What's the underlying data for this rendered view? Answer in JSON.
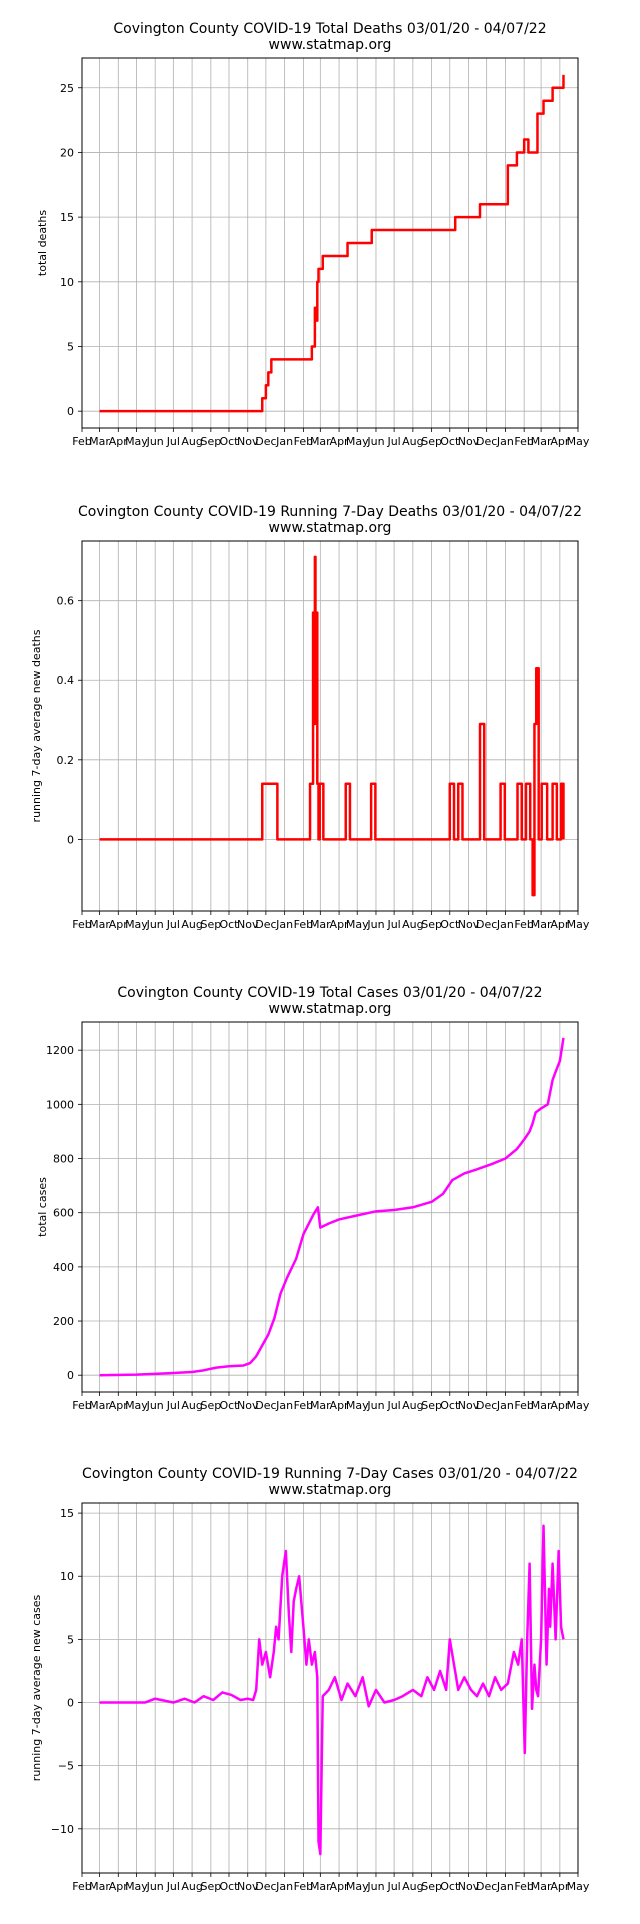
{
  "x_tick_labels": [
    "Feb",
    "Mar",
    "Apr",
    "May",
    "Jun",
    "Jul",
    "Aug",
    "Sep",
    "Oct",
    "Nov",
    "Dec",
    "Jan",
    "Feb",
    "Mar",
    "Apr",
    "May",
    "Jun",
    "Jul",
    "Aug",
    "Sep",
    "Oct",
    "Nov",
    "Dec",
    "Jan",
    "Feb",
    "Mar",
    "Apr",
    "May"
  ],
  "colors": {
    "deaths": "#ff0000",
    "cases": "#ff00ff",
    "grid": "#b0b0b0",
    "axis": "#000000"
  },
  "chart_data": [
    {
      "type": "line",
      "title": "Covington County COVID-19 Total Deaths 03/01/20 - 04/07/22",
      "subtitle": "www.statmap.org",
      "xlabel": "",
      "ylabel": "total deaths",
      "xlim": [
        "2020-02-01",
        "2022-05-01"
      ],
      "ylim": [
        -1.3,
        27.3
      ],
      "yticks": [
        0,
        5,
        10,
        15,
        20,
        25
      ],
      "grid": true,
      "color": "#ff0000",
      "step": true,
      "series": [
        {
          "x": [
            "2020-03-01",
            "2020-11-25",
            "2020-12-01",
            "2020-12-05",
            "2020-12-10",
            "2020-12-20",
            "2021-02-15",
            "2021-02-20",
            "2021-02-22",
            "2021-02-24",
            "2021-02-26",
            "2021-03-05",
            "2021-04-15",
            "2021-05-25",
            "2021-10-01",
            "2021-10-10",
            "2021-11-20",
            "2022-01-05",
            "2022-01-20",
            "2022-02-01",
            "2022-02-08",
            "2022-02-23",
            "2022-03-05",
            "2022-03-20",
            "2022-04-07"
          ],
          "y": [
            0,
            1,
            2,
            3,
            4,
            4,
            5,
            8,
            7,
            10,
            11,
            12,
            13,
            14,
            14,
            15,
            16,
            19,
            20,
            21,
            20,
            23,
            24,
            25,
            26
          ]
        }
      ]
    },
    {
      "type": "line",
      "title": "Covington County COVID-19 Running 7-Day Deaths 03/01/20 - 04/07/22",
      "subtitle": "www.statmap.org",
      "xlabel": "",
      "ylabel": "running 7-day average new deaths",
      "xlim": [
        "2020-02-01",
        "2022-05-01"
      ],
      "ylim": [
        -0.18,
        0.75
      ],
      "yticks": [
        0.0,
        0.2,
        0.4,
        0.6
      ],
      "grid": true,
      "color": "#ff0000",
      "step": true,
      "series": [
        {
          "x": [
            "2020-03-01",
            "2020-11-25",
            "2020-12-02",
            "2020-12-05",
            "2020-12-09",
            "2020-12-12",
            "2020-12-16",
            "2020-12-20",
            "2021-02-12",
            "2021-02-17",
            "2021-02-19",
            "2021-02-20",
            "2021-02-21",
            "2021-02-22",
            "2021-02-23",
            "2021-02-24",
            "2021-02-26",
            "2021-02-28",
            "2021-03-02",
            "2021-03-06",
            "2021-03-09",
            "2021-03-13",
            "2021-04-12",
            "2021-04-19",
            "2021-05-24",
            "2021-05-31",
            "2021-10-01",
            "2021-10-08",
            "2021-10-15",
            "2021-10-22",
            "2021-11-20",
            "2021-11-27",
            "2021-12-24",
            "2021-12-31",
            "2022-01-21",
            "2022-01-28",
            "2022-02-04",
            "2022-02-11",
            "2022-02-15",
            "2022-02-18",
            "2022-02-21",
            "2022-02-25",
            "2022-03-02",
            "2022-03-07",
            "2022-03-11",
            "2022-03-16",
            "2022-03-20",
            "2022-03-27",
            "2022-04-03",
            "2022-04-07"
          ],
          "y": [
            0,
            0.14,
            0.14,
            0.14,
            0.14,
            0.14,
            0.14,
            0,
            0.14,
            0.57,
            0.29,
            0.71,
            0.57,
            0.43,
            0.57,
            0.14,
            0,
            0.14,
            0.14,
            0,
            0,
            0,
            0.14,
            0,
            0.14,
            0,
            0.14,
            0,
            0.14,
            0,
            0.29,
            0,
            0.14,
            0,
            0.14,
            0,
            0.14,
            0,
            -0.14,
            0.29,
            0.43,
            0,
            0.14,
            0.14,
            0,
            0,
            0.14,
            0,
            0.14,
            0
          ]
        }
      ]
    },
    {
      "type": "line",
      "title": "Covington County COVID-19 Total Cases 03/01/20 - 04/07/22",
      "subtitle": "www.statmap.org",
      "xlabel": "",
      "ylabel": "total cases",
      "xlim": [
        "2020-02-01",
        "2022-05-01"
      ],
      "ylim": [
        -62,
        1304
      ],
      "yticks": [
        0,
        200,
        400,
        600,
        800,
        1000,
        1200
      ],
      "grid": true,
      "color": "#ff00ff",
      "step": false,
      "series": [
        {
          "x": [
            "2020-03-01",
            "2020-05-01",
            "2020-06-01",
            "2020-07-01",
            "2020-08-01",
            "2020-08-20",
            "2020-09-10",
            "2020-10-01",
            "2020-10-25",
            "2020-11-05",
            "2020-11-15",
            "2020-11-25",
            "2020-12-05",
            "2020-12-15",
            "2020-12-25",
            "2021-01-05",
            "2021-01-20",
            "2021-02-01",
            "2021-02-10",
            "2021-02-18",
            "2021-02-25",
            "2021-03-01",
            "2021-03-15",
            "2021-04-01",
            "2021-05-01",
            "2021-06-01",
            "2021-07-01",
            "2021-08-01",
            "2021-09-01",
            "2021-09-20",
            "2021-10-05",
            "2021-10-25",
            "2021-11-15",
            "2021-12-10",
            "2022-01-01",
            "2022-01-20",
            "2022-02-01",
            "2022-02-10",
            "2022-02-15",
            "2022-02-20",
            "2022-03-01",
            "2022-03-12",
            "2022-03-20",
            "2022-03-25",
            "2022-04-01",
            "2022-04-07"
          ],
          "y": [
            0,
            2,
            5,
            8,
            12,
            18,
            28,
            33,
            36,
            45,
            70,
            110,
            150,
            210,
            300,
            360,
            430,
            520,
            560,
            595,
            620,
            545,
            560,
            575,
            590,
            605,
            610,
            620,
            640,
            670,
            720,
            745,
            760,
            780,
            800,
            835,
            870,
            900,
            930,
            970,
            985,
            1000,
            1090,
            1120,
            1160,
            1245
          ]
        }
      ]
    },
    {
      "type": "line",
      "title": "Covington County COVID-19 Running 7-Day Cases 03/01/20 - 04/07/22",
      "subtitle": "www.statmap.org",
      "xlabel": "",
      "ylabel": "running 7-day average new cases",
      "xlim": [
        "2020-02-01",
        "2022-05-01"
      ],
      "ylim": [
        -13.5,
        15.8
      ],
      "yticks": [
        -10,
        -5,
        0,
        5,
        10,
        15
      ],
      "grid": true,
      "color": "#ff00ff",
      "step": false,
      "series": [
        {
          "x": [
            "2020-03-01",
            "2020-05-15",
            "2020-06-01",
            "2020-07-01",
            "2020-07-20",
            "2020-08-05",
            "2020-08-20",
            "2020-09-05",
            "2020-09-20",
            "2020-10-05",
            "2020-10-20",
            "2020-11-01",
            "2020-11-10",
            "2020-11-15",
            "2020-11-20",
            "2020-11-25",
            "2020-12-01",
            "2020-12-08",
            "2020-12-14",
            "2020-12-18",
            "2020-12-22",
            "2020-12-28",
            "2021-01-03",
            "2021-01-08",
            "2021-01-12",
            "2021-01-16",
            "2021-01-20",
            "2021-01-25",
            "2021-02-01",
            "2021-02-06",
            "2021-02-10",
            "2021-02-15",
            "2021-02-20",
            "2021-02-24",
            "2021-02-26",
            "2021-03-01",
            "2021-03-05",
            "2021-03-15",
            "2021-03-25",
            "2021-04-05",
            "2021-04-15",
            "2021-04-28",
            "2021-05-10",
            "2021-05-20",
            "2021-06-01",
            "2021-06-15",
            "2021-07-01",
            "2021-07-15",
            "2021-08-01",
            "2021-08-15",
            "2021-08-25",
            "2021-09-05",
            "2021-09-15",
            "2021-09-25",
            "2021-10-01",
            "2021-10-08",
            "2021-10-15",
            "2021-10-25",
            "2021-11-05",
            "2021-11-15",
            "2021-11-25",
            "2021-12-05",
            "2021-12-15",
            "2021-12-25",
            "2022-01-05",
            "2022-01-15",
            "2022-01-22",
            "2022-01-28",
            "2022-02-02",
            "2022-02-06",
            "2022-02-10",
            "2022-02-14",
            "2022-02-18",
            "2022-02-21",
            "2022-02-24",
            "2022-03-01",
            "2022-03-05",
            "2022-03-10",
            "2022-03-14",
            "2022-03-16",
            "2022-03-20",
            "2022-03-25",
            "2022-03-30",
            "2022-04-03",
            "2022-04-07"
          ],
          "y": [
            0,
            0,
            0.3,
            0,
            0.3,
            0,
            0.5,
            0.2,
            0.8,
            0.6,
            0.2,
            0.3,
            0.2,
            1,
            5,
            3,
            4,
            2,
            4,
            6,
            5,
            10,
            12,
            7,
            4,
            8,
            9,
            10,
            6,
            3,
            5,
            3,
            4,
            2,
            -11,
            -12,
            0.5,
            1,
            2,
            0.2,
            1.5,
            0.5,
            2,
            -0.3,
            1,
            0,
            0.2,
            0.5,
            1,
            0.5,
            2,
            1,
            2.5,
            1,
            5,
            3,
            1,
            2,
            1,
            0.5,
            1.5,
            0.5,
            2,
            1,
            1.5,
            4,
            3,
            5,
            -4,
            5,
            11,
            -0.5,
            3,
            1,
            0.5,
            5,
            14,
            3,
            9,
            6,
            11,
            5,
            12,
            6,
            5
          ]
        }
      ]
    }
  ]
}
